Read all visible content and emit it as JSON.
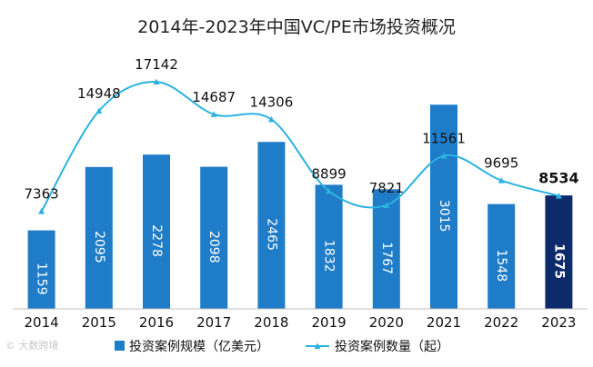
{
  "chart_data": {
    "type": "bar",
    "title": "2014年-2023年中国VC/PE市场投资概况",
    "categories": [
      "2014",
      "2015",
      "2016",
      "2017",
      "2018",
      "2019",
      "2020",
      "2021",
      "2022",
      "2023"
    ],
    "series": [
      {
        "name": "投资案例规模（亿美元）",
        "type": "bar",
        "values": [
          1159,
          2095,
          2278,
          2098,
          2465,
          1832,
          1767,
          3015,
          1548,
          1675
        ],
        "color": "#1f7cc8",
        "highlight_color": "#0d2a6b",
        "highlight_index": 9
      },
      {
        "name": "投资案例数量（起）",
        "type": "line",
        "values": [
          7363,
          14948,
          17142,
          14687,
          14306,
          8899,
          7821,
          11561,
          9695,
          8534
        ],
        "color": "#2bb3e0",
        "smooth": true
      }
    ],
    "legend_position": "bottom",
    "grid": false,
    "ylim_bar": [
      0,
      3300
    ],
    "ylim_line": [
      0,
      19000
    ]
  },
  "watermark": "© 大数跨境"
}
